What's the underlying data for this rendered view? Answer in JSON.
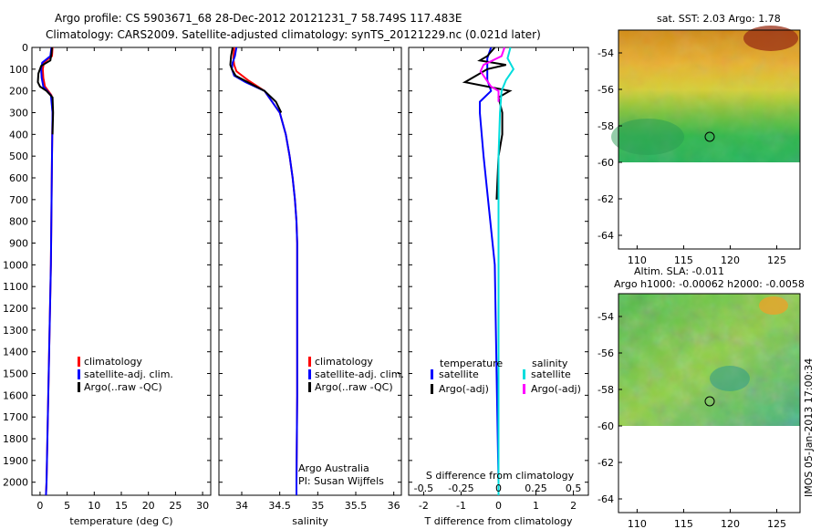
{
  "header": {
    "title_line1": "Argo profile: CS 5903671_68 28-Dec-2012 20121231_7 58.749S 117.483E",
    "title_line2": "Climatology: CARS2009. Satellite-adjusted climatology: synTS_20121229.nc (0.021d later)"
  },
  "colors": {
    "climatology": "#ff0000",
    "satellite": "#0000ff",
    "argo": "#000000",
    "sal_satellite": "#00dddd",
    "sal_argo": "#ff00ff"
  },
  "chart_data": [
    {
      "type": "line",
      "title": "",
      "xlabel": "temperature (deg C)",
      "ylabel": "",
      "xlim": [
        -1.5,
        31.5
      ],
      "ylim": [
        2060,
        0
      ],
      "xticks": [
        "0",
        "5",
        "10",
        "15",
        "20",
        "25",
        "30"
      ],
      "yticks": [
        "0",
        "100",
        "200",
        "300",
        "400",
        "500",
        "600",
        "700",
        "800",
        "900",
        "1000",
        "1100",
        "1200",
        "1300",
        "1400",
        "1500",
        "1600",
        "1700",
        "1800",
        "1900",
        "2000"
      ],
      "legend": [
        "climatology",
        "satellite-adj. clim.",
        "Argo(..raw -QC)"
      ],
      "series": [
        {
          "name": "climatology",
          "color": "#ff0000",
          "depth": [
            0,
            40,
            70,
            100,
            140,
            180,
            220,
            300,
            500,
            1000,
            1500,
            2000,
            2060
          ],
          "values": [
            2.3,
            2.2,
            0.7,
            0.5,
            0.6,
            0.9,
            2.1,
            2.3,
            2.2,
            2.0,
            1.6,
            1.2,
            1.1
          ]
        },
        {
          "name": "satellite-adj. clim.",
          "color": "#0000ff",
          "depth": [
            0,
            40,
            70,
            100,
            140,
            180,
            220,
            300,
            500,
            1000,
            1500,
            2000,
            2060
          ],
          "values": [
            2.1,
            1.9,
            0.4,
            0.2,
            0.3,
            0.6,
            2.0,
            2.3,
            2.2,
            2.0,
            1.6,
            1.2,
            1.1
          ]
        },
        {
          "name": "Argo(..raw -QC)",
          "color": "#000000",
          "depth": [
            0,
            30,
            60,
            85,
            120,
            160,
            180,
            200,
            230,
            300,
            400
          ],
          "values": [
            2.2,
            2.1,
            1.9,
            0.2,
            -0.3,
            -0.4,
            0.0,
            1.2,
            2.3,
            2.4,
            2.3
          ]
        }
      ]
    },
    {
      "type": "line",
      "title": "",
      "xlabel": "salinity",
      "ylabel": "",
      "xlim": [
        33.7,
        36.1
      ],
      "ylim": [
        2060,
        0
      ],
      "xticks": [
        "34",
        "34.5",
        "35",
        "35.5",
        "36"
      ],
      "legend": [
        "climatology",
        "satellite-adj. clim.",
        "Argo(..raw -QC)"
      ],
      "annotation": [
        "Argo Australia",
        "PI: Susan Wijffels"
      ],
      "series": [
        {
          "name": "climatology",
          "color": "#ff0000",
          "depth": [
            0,
            50,
            80,
            110,
            150,
            200,
            300,
            400,
            500,
            600,
            700,
            800,
            900,
            1000,
            1300,
            1600,
            2000,
            2060
          ],
          "values": [
            33.9,
            33.89,
            33.9,
            33.93,
            34.08,
            34.3,
            34.5,
            34.58,
            34.63,
            34.67,
            34.7,
            34.72,
            34.73,
            34.73,
            34.73,
            34.73,
            34.72,
            34.72
          ]
        },
        {
          "name": "satellite-adj. clim.",
          "color": "#0000ff",
          "depth": [
            0,
            40,
            70,
            100,
            130,
            160,
            200,
            300,
            400,
            500,
            600,
            700,
            800,
            900,
            1000,
            1300,
            1600,
            2000,
            2060
          ],
          "values": [
            33.93,
            33.91,
            33.88,
            33.87,
            33.9,
            34.05,
            34.3,
            34.5,
            34.58,
            34.63,
            34.67,
            34.7,
            34.72,
            34.73,
            34.73,
            34.73,
            34.73,
            34.72,
            34.72
          ]
        },
        {
          "name": "Argo(..raw -QC)",
          "color": "#000000",
          "depth": [
            0,
            40,
            80,
            100,
            130,
            160,
            200,
            250,
            300
          ],
          "values": [
            33.88,
            33.86,
            33.85,
            33.87,
            33.92,
            34.08,
            34.3,
            34.45,
            34.52
          ]
        }
      ]
    },
    {
      "type": "line",
      "title": "",
      "xlabel": "T difference from climatology",
      "xlabel2": "S difference from climatology",
      "xlim": [
        -2.4,
        2.4
      ],
      "xticks": [
        "-2",
        "-1",
        "0",
        "1",
        "2"
      ],
      "s_xticks": [
        "-0.5",
        "-0.25",
        "0",
        "0.25",
        "0.5"
      ],
      "ylim": [
        2060,
        0
      ],
      "legend_headers": [
        "temperature",
        "salinity"
      ],
      "legend": [
        "satellite",
        "Argo(-adj)",
        "satellite",
        "Argo(-adj)"
      ],
      "series": [
        {
          "name": "temperature satellite",
          "color": "#0000ff",
          "depth": [
            0,
            50,
            80,
            100,
            120,
            150,
            200,
            250,
            300,
            500,
            1000,
            1500,
            2000,
            2060
          ],
          "values": [
            -0.2,
            -0.3,
            -0.3,
            -0.3,
            -0.3,
            -0.3,
            -0.2,
            -0.5,
            -0.5,
            -0.4,
            -0.1,
            -0.05,
            0,
            0
          ]
        },
        {
          "name": "temperature Argo(-adj)",
          "color": "#000000",
          "depth": [
            0,
            40,
            60,
            80,
            100,
            120,
            140,
            160,
            180,
            200,
            230,
            300,
            400,
            500,
            700
          ],
          "values": [
            -0.1,
            -0.3,
            -0.5,
            0.2,
            -0.3,
            -0.5,
            -0.7,
            -0.9,
            -0.3,
            0.3,
            0.0,
            0.1,
            0.1,
            0.0,
            -0.05
          ]
        },
        {
          "name": "salinity satellite",
          "color": "#00dddd",
          "depth": [
            0,
            50,
            100,
            150,
            200,
            300,
            500,
            1000,
            1500,
            2000,
            2060
          ],
          "values": [
            0.08,
            0.06,
            0.1,
            0.05,
            0.02,
            0.01,
            0.0,
            0.0,
            0.0,
            0.0,
            0.0
          ]
        },
        {
          "name": "salinity Argo(-adj)",
          "color": "#ff00ff",
          "depth": [
            0,
            40,
            80,
            110,
            150,
            180,
            200,
            250
          ],
          "values": [
            0.04,
            0.02,
            -0.1,
            -0.12,
            -0.08,
            -0.05,
            0.0,
            0.0
          ]
        }
      ]
    },
    {
      "type": "heatmap",
      "title": "sat. SST: 2.03  Argo: 1.78",
      "xticks": [
        "110",
        "115",
        "120",
        "125"
      ],
      "yticks": [
        "-54",
        "-56",
        "-58",
        "-60",
        "-62",
        "-64"
      ],
      "marker": {
        "lon": 117.483,
        "lat": -58.749
      }
    },
    {
      "type": "heatmap",
      "title": "Altim. SLA: -0.011",
      "subtitle": "Argo h1000: -0.00062  h2000: -0.0058",
      "xticks": [
        "110",
        "115",
        "120",
        "125"
      ],
      "yticks": [
        "-54",
        "-56",
        "-58",
        "-60",
        "-62",
        "-64"
      ],
      "marker": {
        "lon": 117.483,
        "lat": -58.749
      }
    }
  ],
  "footer": {
    "stamp": "IMOS 05-Jan-2013 17:00:34"
  }
}
